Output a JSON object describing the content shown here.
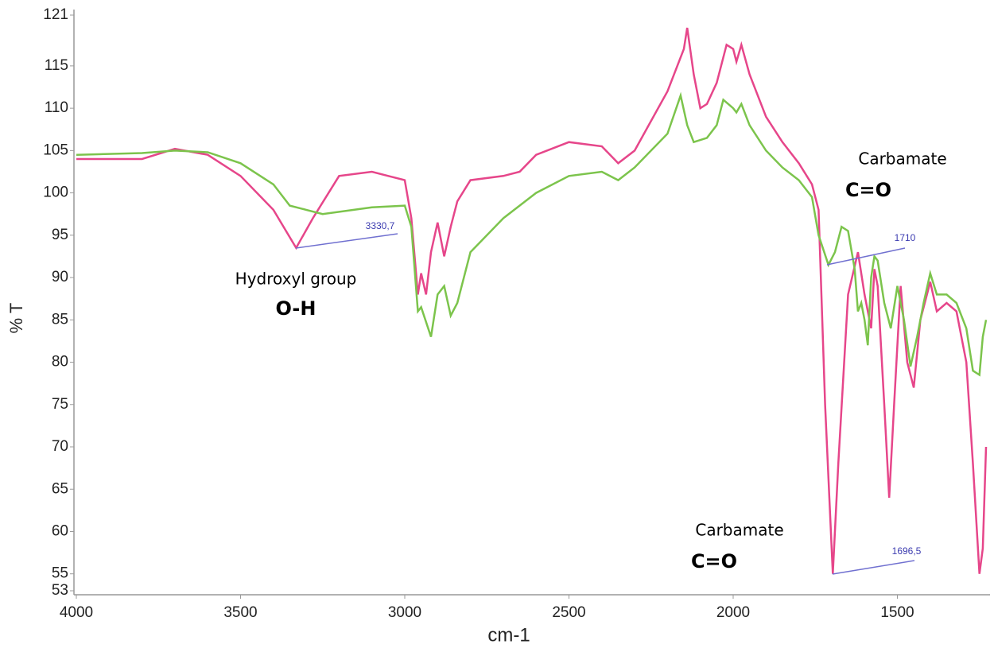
{
  "chart_data": {
    "type": "line",
    "x_label": "cm-1",
    "y_label": "% T",
    "xlim": [
      4000,
      1230
    ],
    "xticks": [
      4000,
      3500,
      3000,
      2500,
      2000,
      1500
    ],
    "ylim": [
      53,
      121
    ],
    "yticks": [
      53,
      55,
      60,
      65,
      70,
      75,
      80,
      85,
      90,
      95,
      100,
      105,
      110,
      115,
      121
    ],
    "series": [
      {
        "name": "pink",
        "color": "#e6468a",
        "x": [
          4000,
          3800,
          3700,
          3600,
          3500,
          3400,
          3330.7,
          3280,
          3200,
          3100,
          3050,
          3000,
          2980,
          2960,
          2950,
          2935,
          2920,
          2900,
          2880,
          2860,
          2840,
          2800,
          2700,
          2650,
          2600,
          2500,
          2400,
          2350,
          2300,
          2200,
          2150,
          2140,
          2120,
          2100,
          2080,
          2050,
          2020,
          2000,
          1990,
          1975,
          1950,
          1900,
          1850,
          1800,
          1760,
          1740,
          1720,
          1696.5,
          1680,
          1650,
          1620,
          1600,
          1580,
          1570,
          1560,
          1540,
          1525,
          1510,
          1490,
          1470,
          1450,
          1430,
          1410,
          1400,
          1380,
          1350,
          1320,
          1290,
          1270,
          1250,
          1240,
          1230
        ],
        "values": [
          104,
          104,
          105.2,
          104.5,
          102,
          98,
          93.5,
          97,
          102,
          102.5,
          102,
          101.5,
          97,
          88,
          90.5,
          88,
          93,
          96.5,
          92.5,
          96,
          99,
          101.5,
          102,
          102.5,
          104.5,
          106,
          105.5,
          103.5,
          105,
          112,
          117,
          119.5,
          114,
          110,
          110.5,
          113,
          117.5,
          117,
          115.5,
          117.5,
          114,
          109,
          106,
          103.5,
          101,
          98,
          75,
          55,
          68,
          88,
          93,
          88,
          84,
          91,
          89,
          75,
          64,
          75,
          89,
          80,
          77,
          85,
          88,
          89.5,
          86,
          87,
          86,
          80,
          68,
          55,
          58,
          70
        ]
      },
      {
        "name": "green",
        "color": "#7cc44c",
        "x": [
          4000,
          3800,
          3700,
          3600,
          3500,
          3400,
          3350,
          3300,
          3250,
          3100,
          3000,
          2980,
          2960,
          2950,
          2920,
          2900,
          2880,
          2860,
          2840,
          2800,
          2700,
          2600,
          2500,
          2400,
          2350,
          2300,
          2200,
          2160,
          2140,
          2120,
          2080,
          2050,
          2030,
          2000,
          1990,
          1975,
          1950,
          1900,
          1850,
          1800,
          1760,
          1740,
          1710,
          1690,
          1670,
          1650,
          1630,
          1620,
          1610,
          1600,
          1590,
          1580,
          1570,
          1560,
          1540,
          1520,
          1500,
          1480,
          1460,
          1440,
          1420,
          1400,
          1380,
          1350,
          1320,
          1290,
          1270,
          1250,
          1240,
          1230
        ],
        "values": [
          104.5,
          104.7,
          105,
          104.8,
          103.5,
          101,
          98.5,
          98,
          97.5,
          98.3,
          98.5,
          96,
          86,
          86.5,
          83,
          88,
          89,
          85.5,
          87,
          93,
          97,
          100,
          102,
          102.5,
          101.5,
          103,
          107,
          111.5,
          108,
          106,
          106.5,
          108,
          111,
          110,
          109.5,
          110.5,
          108,
          105,
          103,
          101.5,
          99.5,
          95,
          91.5,
          93,
          96,
          95.5,
          91,
          86,
          87,
          85,
          82,
          90,
          92.5,
          92,
          87,
          84,
          89,
          85,
          79.5,
          83,
          87,
          90.5,
          88,
          88,
          87,
          84,
          79,
          78.5,
          83,
          85
        ]
      }
    ],
    "annotations": [
      {
        "text": "Hydroxyl group"
      },
      {
        "text": "O-H"
      },
      {
        "text": "Carbamate"
      },
      {
        "text": "C=O"
      },
      {
        "text": "Carbamate"
      },
      {
        "text": "C=O"
      },
      {
        "text": "3330,7"
      },
      {
        "text": "1710"
      },
      {
        "text": "1696,5"
      }
    ]
  }
}
